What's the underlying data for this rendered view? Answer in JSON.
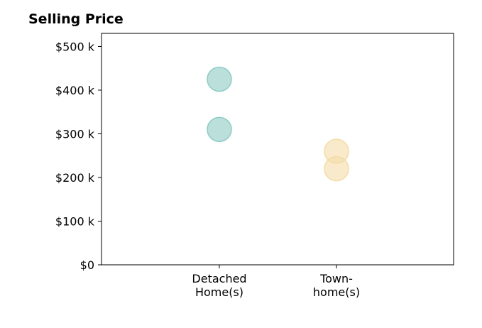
{
  "chart_data": {
    "type": "scatter",
    "title": "Selling Price",
    "categories": [
      "Detached\nHome(s)",
      "Town-\nhome(s)"
    ],
    "yticks": [
      "$0",
      "$100 k",
      "$200 k",
      "$300 k",
      "$400 k",
      "$500 k"
    ],
    "ylim": [
      0,
      530
    ],
    "grid": false,
    "series": [
      {
        "color": "#8ecbc4",
        "points": [
          {
            "category": "Detached\nHome(s)",
            "value": 425
          },
          {
            "category": "Detached\nHome(s)",
            "value": 310
          }
        ]
      },
      {
        "color": "#f4dca6",
        "points": [
          {
            "category": "Town-\nhome(s)",
            "value": 260
          },
          {
            "category": "Town-\nhome(s)",
            "value": 220
          }
        ]
      }
    ]
  }
}
